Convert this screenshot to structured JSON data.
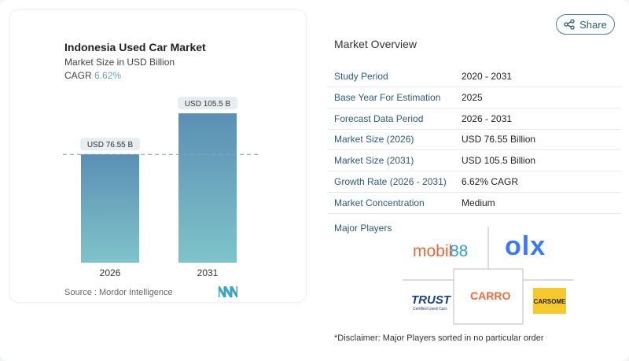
{
  "header": {
    "share_label": "Share"
  },
  "chart_card": {
    "title": "Indonesia Used Car Market",
    "subtitle": "Market Size in USD Billion",
    "cagr_label": "CAGR",
    "cagr_value": "6.62%",
    "source": "Source :  Mordor Intelligence"
  },
  "chart_data": {
    "type": "bar",
    "title": "Indonesia Used Car Market",
    "subtitle": "Market Size in USD Billion",
    "categories": [
      "2026",
      "2031"
    ],
    "values": [
      76.55,
      105.5
    ],
    "data_labels": [
      "USD 76.55 B",
      "USD 105.5 B"
    ],
    "ylim": [
      0,
      110
    ],
    "grid": false,
    "reference_line": 76.55,
    "colors": {
      "bar_top": "#5b8fb5",
      "bar_bottom": "#7ec4c8"
    }
  },
  "overview": {
    "title": "Market Overview",
    "rows": [
      {
        "key": "Study Period",
        "value": "2020 - 2031"
      },
      {
        "key": "Base Year For Estimation",
        "value": "2025"
      },
      {
        "key": "Forecast Data Period",
        "value": "2026 - 2031"
      },
      {
        "key": "Market Size (2026)",
        "value": "USD 76.55 Billion"
      },
      {
        "key": "Market Size (2031)",
        "value": "USD 105.5 Billion"
      },
      {
        "key": "Growth Rate (2026 - 2031)",
        "value": "6.62% CAGR"
      },
      {
        "key": "Market Concentration",
        "value": "Medium"
      }
    ],
    "major_players_label": "Major Players",
    "players": [
      "mobil88",
      "OLX",
      "TRUST",
      "CARRO",
      "CARSOME"
    ],
    "disclaimer": "*Disclaimer: Major Players sorted in no particular order"
  },
  "colors": {
    "accent": "#2d5b78",
    "mobil88": "#e8683a",
    "olx": "#3a77ff",
    "carro": "#f26b3a",
    "carsome_bg": "#f8c92a",
    "trust": "#1d3f8a"
  }
}
